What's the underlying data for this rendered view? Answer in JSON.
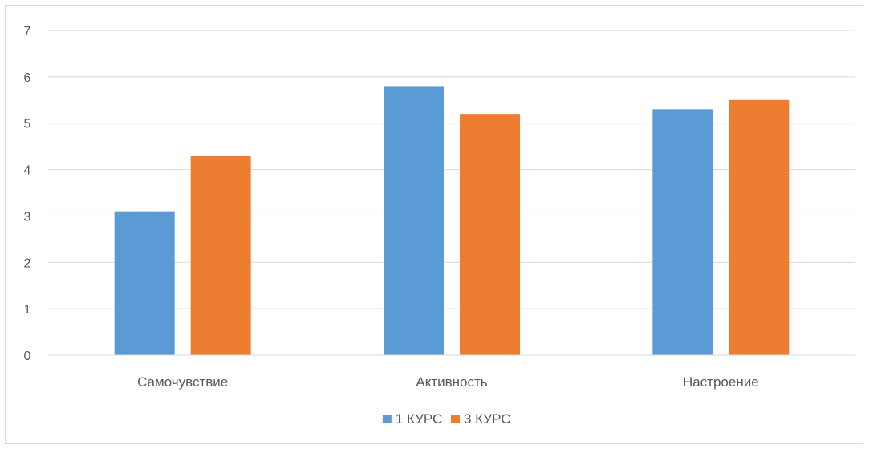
{
  "chart_data": {
    "type": "bar",
    "title": "",
    "xlabel": "",
    "ylabel": "",
    "categories": [
      "Самочувствие",
      "Активность",
      "Настроение"
    ],
    "series": [
      {
        "name": "1 КУРС",
        "color": "#5b9bd5",
        "values": [
          3.1,
          5.8,
          5.3
        ]
      },
      {
        "name": "3 КУРС",
        "color": "#ed7d31",
        "values": [
          4.3,
          5.2,
          5.5
        ]
      }
    ],
    "ylim": [
      0,
      7
    ],
    "yticks": [
      "0",
      "1",
      "2",
      "3",
      "4",
      "5",
      "6",
      "7"
    ],
    "grid": true,
    "legend_position": "bottom"
  }
}
